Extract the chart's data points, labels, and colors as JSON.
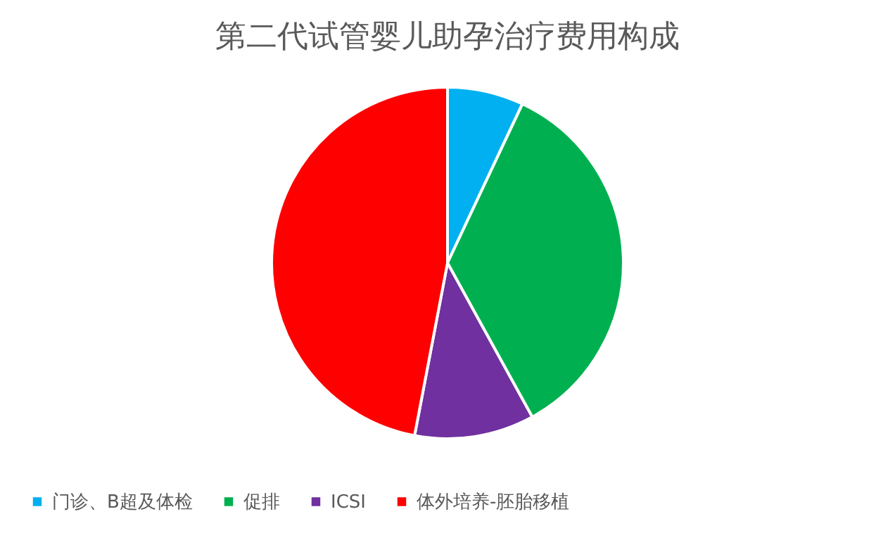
{
  "chart_data": {
    "type": "pie",
    "title": "第二代试管婴儿助孕治疗费用构成",
    "categories": [
      "门诊、B超及体检",
      "促排",
      "ICSI",
      "体外培养-胚胎移植"
    ],
    "values": [
      7,
      35,
      11,
      47
    ],
    "colors": [
      "#00b0f0",
      "#00b050",
      "#7030a0",
      "#ff0000"
    ],
    "legend": "bottom"
  }
}
